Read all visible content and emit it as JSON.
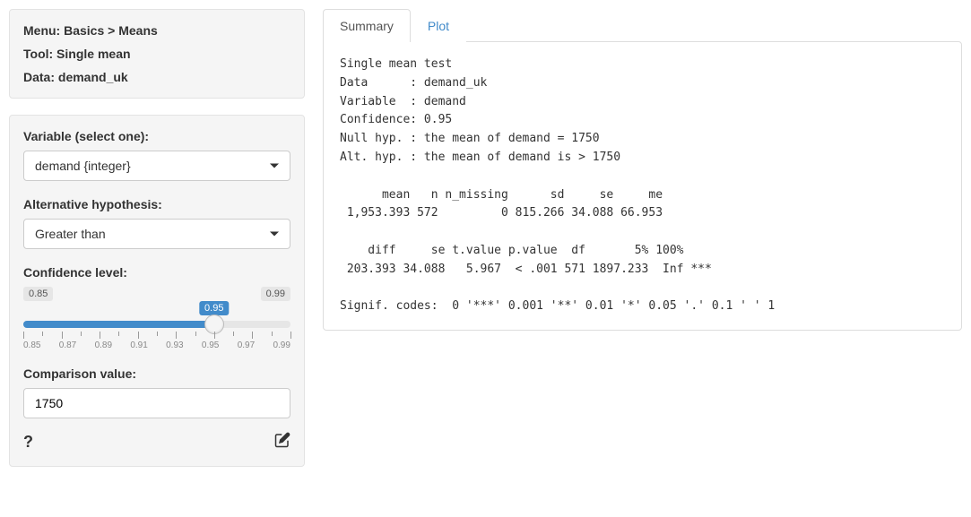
{
  "meta": {
    "menu_label": "Menu: Basics > Means",
    "tool_label": "Tool: Single mean",
    "data_label": "Data: demand_uk"
  },
  "form": {
    "variable_label": "Variable (select one):",
    "variable_value": "demand {integer}",
    "alt_hyp_label": "Alternative hypothesis:",
    "alt_hyp_value": "Greater than",
    "conf_label": "Confidence level:",
    "conf_min": "0.85",
    "conf_max": "0.99",
    "conf_value": "0.95",
    "conf_ticks": [
      "0.85",
      "0.87",
      "0.89",
      "0.91",
      "0.93",
      "0.95",
      "0.97",
      "0.99"
    ],
    "comparison_label": "Comparison value:",
    "comparison_value": "1750"
  },
  "slider_style": {
    "fill_pct": 71.4,
    "fill_color": "#428bca",
    "track_color": "#e6e6e6"
  },
  "tabs": {
    "summary": "Summary",
    "plot": "Plot"
  },
  "output": "Single mean test\nData      : demand_uk\nVariable  : demand\nConfidence: 0.95\nNull hyp. : the mean of demand = 1750\nAlt. hyp. : the mean of demand is > 1750\n\n      mean   n n_missing      sd     se     me\n 1,953.393 572         0 815.266 34.088 66.953\n\n    diff     se t.value p.value  df       5% 100%\n 203.393 34.088   5.967  < .001 571 1897.233  Inf ***\n\nSignif. codes:  0 '***' 0.001 '**' 0.01 '*' 0.05 '.' 0.1 ' ' 1"
}
